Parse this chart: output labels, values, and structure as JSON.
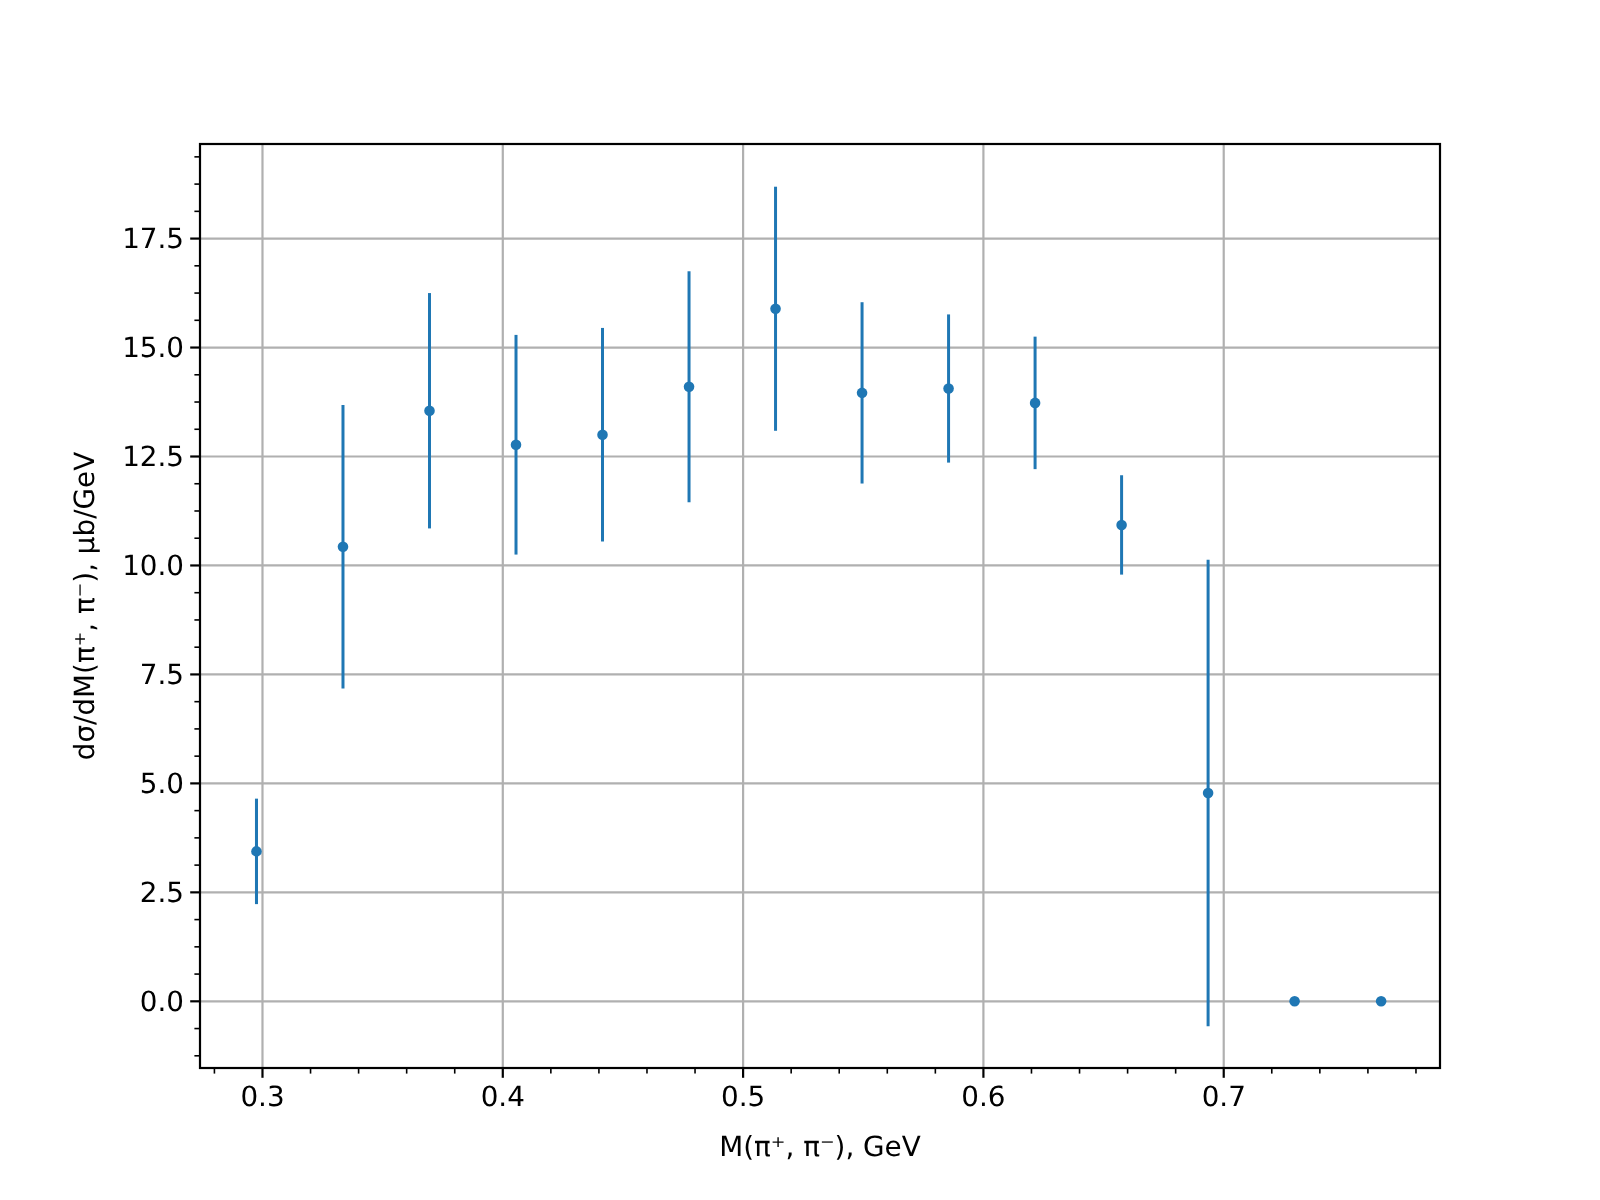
{
  "chart_data": {
    "type": "scatter",
    "xlabel": "M(π⁺, π⁻), GeV",
    "ylabel": "dσ/dM(π⁺, π⁻), μb/GeV",
    "x": [
      0.2975,
      0.3335,
      0.3695,
      0.4055,
      0.4415,
      0.4775,
      0.5135,
      0.5495,
      0.5855,
      0.6215,
      0.6575,
      0.6935,
      0.7295,
      0.7655
    ],
    "series": [
      {
        "color": "#1f77b4",
        "values": [
          3.44,
          10.43,
          13.55,
          12.77,
          13.0,
          14.1,
          15.89,
          13.96,
          14.06,
          13.73,
          10.93,
          4.78,
          0,
          0
        ],
        "errors": [
          1.21,
          3.25,
          2.7,
          2.52,
          2.45,
          2.65,
          2.8,
          2.08,
          1.7,
          1.52,
          1.14,
          5.35,
          null,
          null
        ]
      }
    ],
    "marker": "circle",
    "grid": true,
    "xlim": [
      0.274,
      0.79
    ],
    "xticks": [
      {
        "value": 0.28,
        "label": null
      },
      0.3,
      {
        "value": 0.32,
        "label": null
      },
      {
        "value": 0.34,
        "label": null
      },
      {
        "value": 0.36,
        "label": null
      },
      {
        "value": 0.38,
        "label": null
      },
      0.4,
      {
        "value": 0.42,
        "label": null
      },
      {
        "value": 0.44,
        "label": null
      },
      {
        "value": 0.46,
        "label": null
      },
      {
        "value": 0.48,
        "label": null
      },
      0.5,
      {
        "value": 0.52,
        "label": null
      },
      {
        "value": 0.54,
        "label": null
      },
      {
        "value": 0.56,
        "label": null
      },
      {
        "value": 0.58,
        "label": null
      },
      0.6,
      {
        "value": 0.62,
        "label": null
      },
      {
        "value": 0.64,
        "label": null
      },
      {
        "value": 0.66,
        "label": null
      },
      {
        "value": 0.68,
        "label": null
      },
      0.7,
      {
        "value": 0.72,
        "label": null
      },
      {
        "value": 0.74,
        "label": null
      },
      {
        "value": 0.76,
        "label": null
      },
      {
        "value": 0.78,
        "label": null
      }
    ],
    "ylim": [
      -1.53,
      19.67
    ],
    "yticks": [
      {
        "value": -1.25,
        "label": null
      },
      {
        "value": -0.625,
        "label": null
      },
      {
        "value": 0,
        "label": "0.0"
      },
      {
        "value": 0.625,
        "label": null
      },
      {
        "value": 1.25,
        "label": null
      },
      {
        "value": 1.875,
        "label": null
      },
      2.5,
      {
        "value": 3.125,
        "label": null
      },
      {
        "value": 3.75,
        "label": null
      },
      {
        "value": 4.375,
        "label": null
      },
      {
        "value": 5,
        "label": "5.0"
      },
      {
        "value": 5.625,
        "label": null
      },
      {
        "value": 6.25,
        "label": null
      },
      {
        "value": 6.875,
        "label": null
      },
      7.5,
      {
        "value": 8.125,
        "label": null
      },
      {
        "value": 8.75,
        "label": null
      },
      {
        "value": 9.375,
        "label": null
      },
      {
        "value": 10,
        "label": "10.0"
      },
      {
        "value": 10.625,
        "label": null
      },
      {
        "value": 11.25,
        "label": null
      },
      {
        "value": 11.875,
        "label": null
      },
      12.5,
      {
        "value": 13.125,
        "label": null
      },
      {
        "value": 13.75,
        "label": null
      },
      {
        "value": 14.375,
        "label": null
      },
      {
        "value": 15,
        "label": "15.0"
      },
      {
        "value": 15.625,
        "label": null
      },
      {
        "value": 16.25,
        "label": null
      },
      {
        "value": 16.875,
        "label": null
      },
      17.5,
      {
        "value": 18.125,
        "label": null
      },
      {
        "value": 18.75,
        "label": null
      },
      {
        "value": 19.375,
        "label": null
      }
    ]
  }
}
